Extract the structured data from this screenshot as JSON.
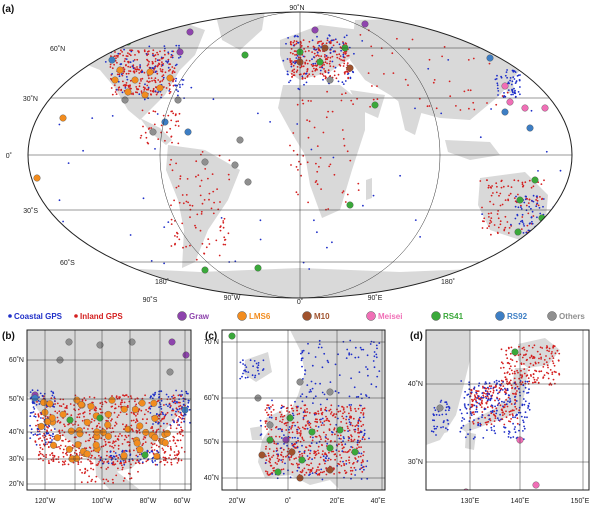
{
  "panels": [
    {
      "id": "a",
      "label": "(a)",
      "lat_labels_left": [
        "60˚N",
        "30˚N",
        "0˚",
        "30˚S",
        "60˚S"
      ],
      "lat_top": "90˚N",
      "lat_bottom": "90˚S",
      "lon_labels": [
        "180˚",
        "90˚W",
        "0˚",
        "90˚E",
        "180˚"
      ]
    },
    {
      "id": "b",
      "label": "(b)",
      "lat_labels": [
        "60˚N",
        "50˚N",
        "40˚N",
        "30˚N",
        "20˚N"
      ],
      "lon_labels": [
        "120˚W",
        "100˚W",
        "80˚W",
        "60˚W"
      ]
    },
    {
      "id": "c",
      "label": "(c)",
      "lat_labels": [
        "70˚N",
        "60˚N",
        "50˚N",
        "40˚N"
      ],
      "lon_labels": [
        "20˚W",
        "0˚",
        "20˚E",
        "40˚E"
      ]
    },
    {
      "id": "d",
      "label": "(d)",
      "lat_labels": [
        "40˚N",
        "30˚N"
      ],
      "lon_labels": [
        "130˚E",
        "140˚E",
        "150˚E"
      ]
    }
  ],
  "legend": [
    {
      "label": "Coastal GPS",
      "color": "#1f2fc8",
      "marker": "small-dot"
    },
    {
      "label": "Inland GPS",
      "color": "#d42020",
      "marker": "small-dot"
    },
    {
      "label": "Graw",
      "color": "#8e44ad",
      "marker": "circle"
    },
    {
      "label": "LMS6",
      "color": "#f28c1e",
      "marker": "circle"
    },
    {
      "label": "M10",
      "color": "#a0522d",
      "marker": "circle"
    },
    {
      "label": "Meisei",
      "color": "#f06fb6",
      "marker": "circle"
    },
    {
      "label": "RS41",
      "color": "#3aa83a",
      "marker": "circle"
    },
    {
      "label": "RS92",
      "color": "#3d7ec4",
      "marker": "circle"
    },
    {
      "label": "Others",
      "color": "#8f8f8f",
      "marker": "circle"
    }
  ],
  "colors": {
    "land": "#d9d9d9",
    "ocean": "#ffffff",
    "coastal_gps": "#1f2fc8",
    "inland_gps": "#d42020"
  }
}
